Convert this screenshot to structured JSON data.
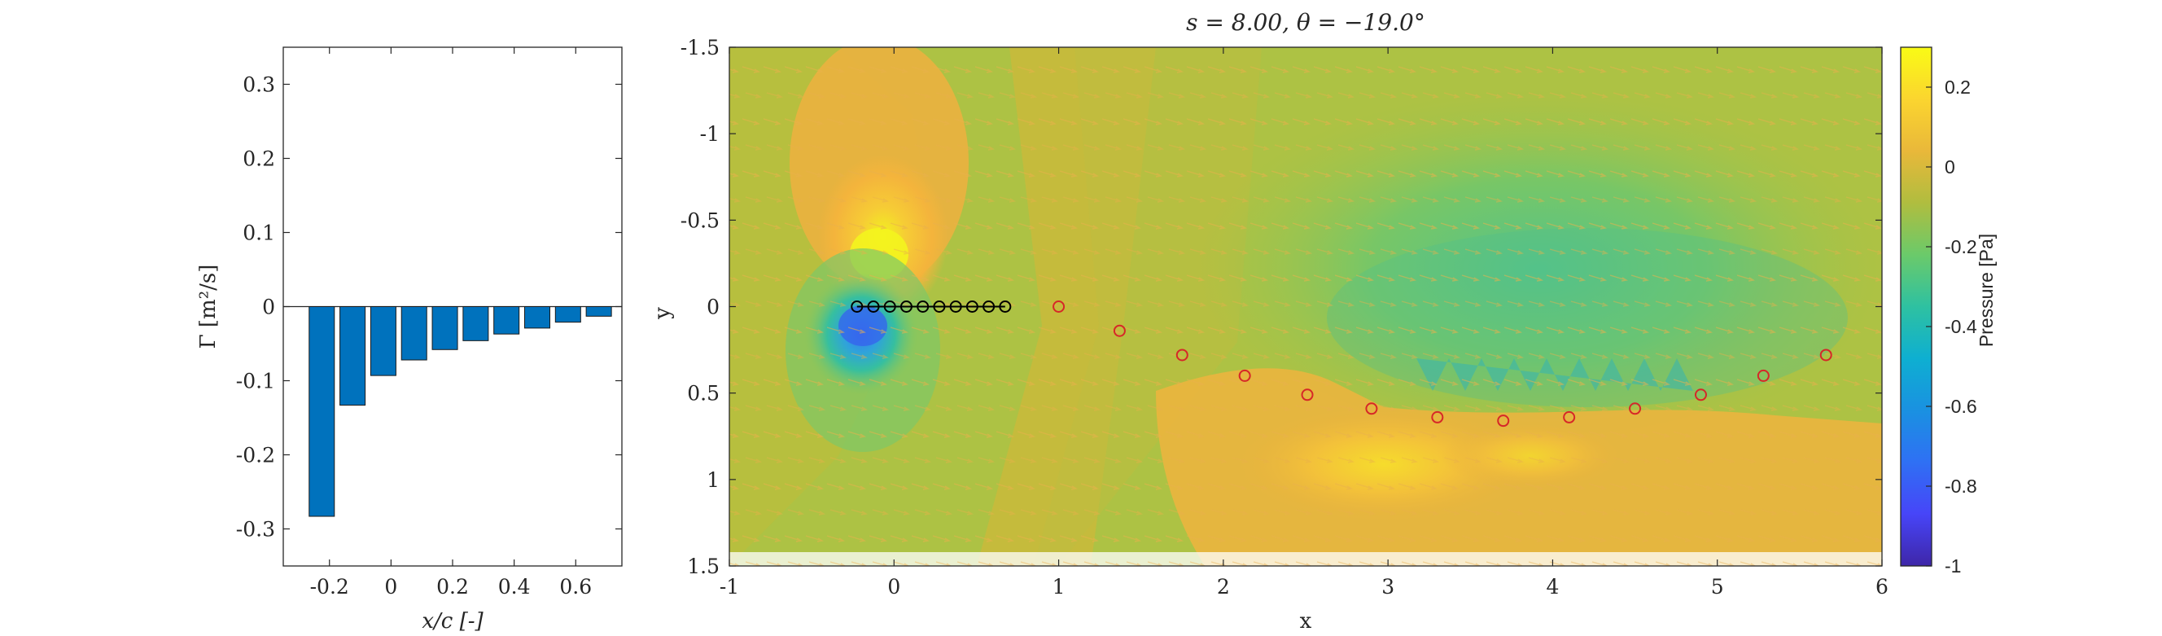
{
  "chart_data": [
    {
      "type": "bar",
      "xlabel": "x/c [-]",
      "ylabel": "Γ [m²/s]",
      "xlim": [
        -0.35,
        0.75
      ],
      "ylim": [
        -0.35,
        0.35
      ],
      "xticks": [
        "-0.2",
        "0",
        "0.2",
        "0.4",
        "0.6"
      ],
      "xtick_values": [
        -0.2,
        0,
        0.2,
        0.4,
        0.6
      ],
      "yticks": [
        "-0.3",
        "-0.2",
        "-0.1",
        "0",
        "0.1",
        "0.2",
        "0.3"
      ],
      "ytick_values": [
        -0.3,
        -0.2,
        -0.1,
        0,
        0.1,
        0.2,
        0.3
      ],
      "x": [
        -0.225,
        -0.125,
        -0.025,
        0.075,
        0.175,
        0.275,
        0.375,
        0.475,
        0.575,
        0.675
      ],
      "values": [
        -0.283,
        -0.133,
        -0.093,
        -0.072,
        -0.058,
        -0.046,
        -0.037,
        -0.029,
        -0.021,
        -0.013
      ],
      "bar_color": "#0072BD"
    },
    {
      "type": "heatmap",
      "title": "s = 8.00, θ = −19.0°",
      "xlabel": "x",
      "ylabel": "y",
      "xlim": [
        -1,
        6
      ],
      "ylim": [
        -1.5,
        1.5
      ],
      "y_reversed": true,
      "xticks": [
        "-1",
        "0",
        "1",
        "2",
        "3",
        "4",
        "5",
        "6"
      ],
      "xtick_values": [
        -1,
        0,
        1,
        2,
        3,
        4,
        5,
        6
      ],
      "yticks": [
        "-1.5",
        "-1",
        "-0.5",
        "0",
        "0.5",
        "1",
        "1.5"
      ],
      "ytick_values": [
        -1.5,
        -1,
        -0.5,
        0,
        0.5,
        1,
        1.5
      ],
      "colorbar": {
        "label": "Pressure [Pa]",
        "range": [
          -1,
          0.3
        ],
        "ticks": [
          "0.2",
          "0",
          "-0.2",
          "-0.4",
          "-0.6",
          "-0.8",
          "-1"
        ],
        "tick_values": [
          0.2,
          0,
          -0.2,
          -0.4,
          -0.6,
          -0.8,
          -1
        ],
        "colormap": "parula"
      },
      "plate_points_x": [
        -0.225,
        -0.125,
        -0.025,
        0.075,
        0.175,
        0.275,
        0.375,
        0.475,
        0.575,
        0.675
      ],
      "plate_points_y": [
        0,
        0,
        0,
        0,
        0,
        0,
        0,
        0,
        0,
        0
      ],
      "plate_color": "#000000",
      "wake_points_x": [
        1.0,
        1.37,
        1.75,
        2.13,
        2.51,
        2.9,
        3.3,
        3.7,
        4.1,
        4.5,
        4.9,
        5.28,
        5.66
      ],
      "wake_points_y": [
        0.0,
        0.14,
        0.28,
        0.4,
        0.51,
        0.59,
        0.64,
        0.66,
        0.64,
        0.59,
        0.51,
        0.4,
        0.28
      ],
      "wake_color": "#D62728"
    }
  ]
}
